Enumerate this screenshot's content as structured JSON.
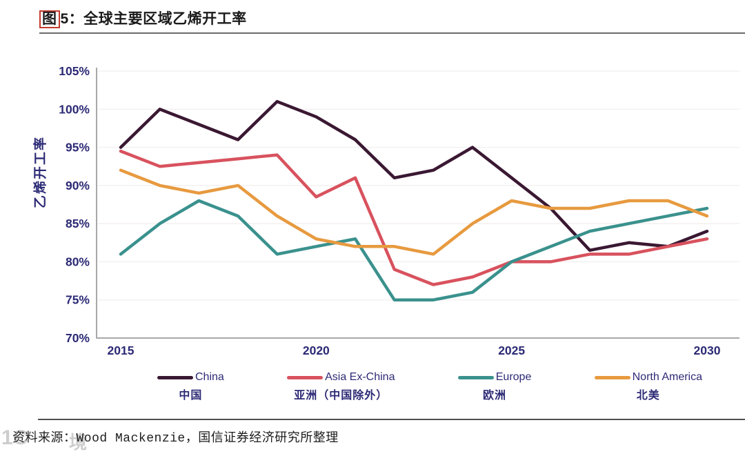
{
  "figure": {
    "boxed_char": "图",
    "title_rest": "5：全球主要区域乙烯开工率",
    "full_title": "图5：全球主要区域乙烯开工率"
  },
  "source": {
    "text": "资料来源：Wood Mackenzie，国信证券经济研究所整理"
  },
  "watermark": {
    "fragment_left": "1C",
    "fragment_right": "境"
  },
  "colors": {
    "axis_line": "#a8a8a8",
    "grid_line": "#f4f0f0",
    "tick_text": "#2c2a75",
    "title_text": "#1a1a1a",
    "title_box_red": "#c43a2e",
    "rule_gray": "#6a6a6a"
  },
  "chart_data": {
    "type": "line",
    "title": "图5：全球主要区域乙烯开工率",
    "xlabel": "",
    "ylabel": "乙烯开工率",
    "ylim": [
      70,
      105
    ],
    "ytick_step": 5,
    "ytick_suffix": "%",
    "grid": "faint-horizontal",
    "legend_position": "bottom",
    "x": [
      2015,
      2016,
      2017,
      2018,
      2019,
      2020,
      2021,
      2022,
      2023,
      2024,
      2025,
      2026,
      2027,
      2028,
      2029,
      2030
    ],
    "x_tick_labels": [
      "2015",
      "2020",
      "2025",
      "2030"
    ],
    "series": [
      {
        "name": "China",
        "name_cn": "中国",
        "color": "#3a1832",
        "values": [
          95,
          100,
          98,
          96,
          101,
          99,
          96,
          91,
          92,
          95,
          91,
          87,
          81.5,
          82.5,
          82,
          84
        ]
      },
      {
        "name": "Asia Ex-China",
        "name_cn": "亚洲（中国除外）",
        "color": "#d8525e",
        "values": [
          94.5,
          92.5,
          93,
          93.5,
          94,
          88.5,
          91,
          79,
          77,
          78,
          80,
          80,
          81,
          81,
          82,
          83
        ]
      },
      {
        "name": "Europe",
        "name_cn": "欧洲",
        "color": "#3a918d",
        "values": [
          81,
          85,
          88,
          86,
          81,
          82,
          83,
          75,
          75,
          76,
          80,
          82,
          84,
          85,
          86,
          87
        ]
      },
      {
        "name": "North America",
        "name_cn": "北美",
        "color": "#e79a3f",
        "values": [
          92,
          90,
          89,
          90,
          86,
          83,
          82,
          82,
          81,
          85,
          88,
          87,
          87,
          88,
          88,
          86
        ]
      }
    ]
  }
}
